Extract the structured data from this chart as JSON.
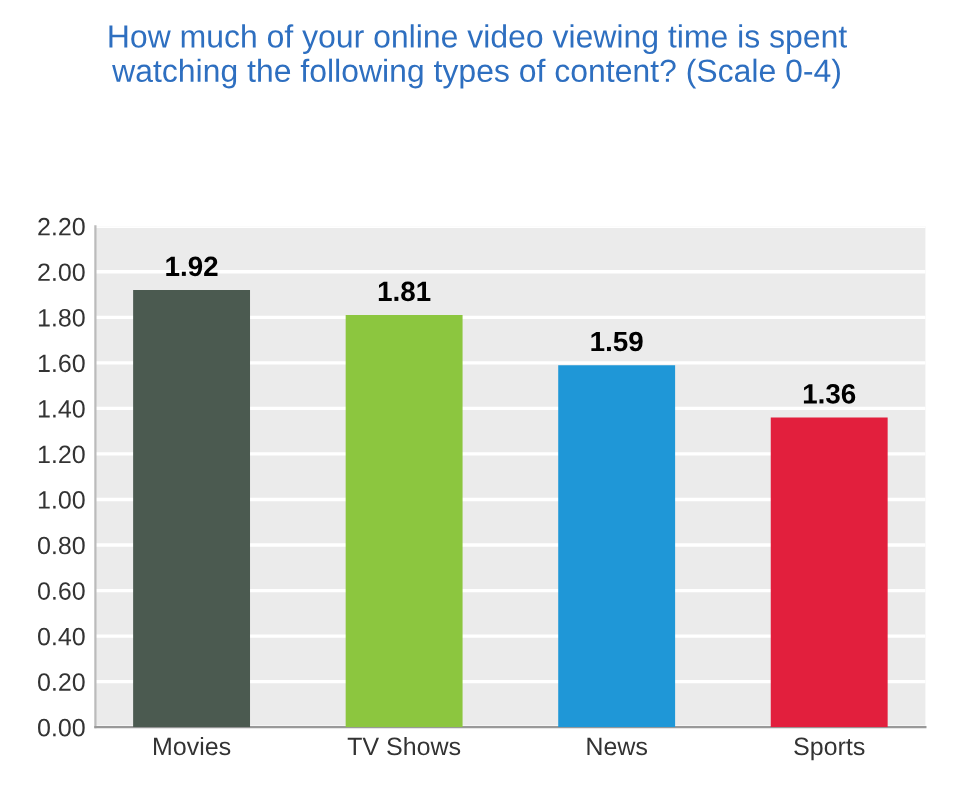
{
  "chart_data": {
    "type": "bar",
    "title": "How much of your online video viewing time is spent\nwatching the following types of content? (Scale 0-4)",
    "categories": [
      "Movies",
      "TV Shows",
      "News",
      "Sports"
    ],
    "values": [
      1.92,
      1.81,
      1.59,
      1.36
    ],
    "colors": [
      "#4b5a50",
      "#8cc63f",
      "#1f97d7",
      "#e21f3d"
    ],
    "ylim": [
      0,
      2.2
    ],
    "yticks": [
      {
        "value": 0,
        "label": "0.00"
      },
      {
        "value": 0.2,
        "label": "0.20"
      },
      {
        "value": 0.4,
        "label": "0.40"
      },
      {
        "value": 0.6,
        "label": "0.60"
      },
      {
        "value": 0.8,
        "label": "0.80"
      },
      {
        "value": 1.0,
        "label": "1.00"
      },
      {
        "value": 1.2,
        "label": "1.20"
      },
      {
        "value": 1.4,
        "label": "1.40"
      },
      {
        "value": 1.6,
        "label": "1.60"
      },
      {
        "value": 1.8,
        "label": "1.80"
      },
      {
        "value": 2.0,
        "label": "2.00"
      },
      {
        "value": 2.2,
        "label": "2.20"
      }
    ],
    "grid": "y",
    "data_labels": true
  }
}
